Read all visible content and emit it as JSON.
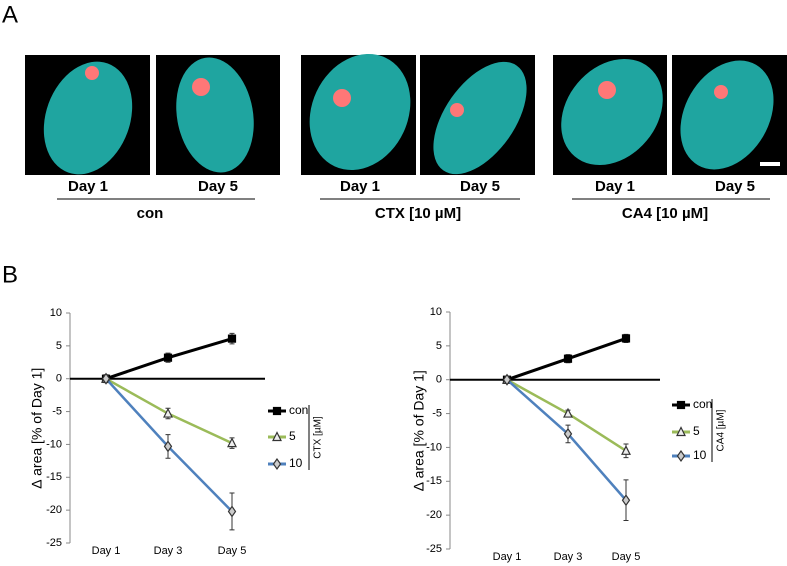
{
  "panel_a": {
    "label": "A",
    "groups": [
      {
        "name": "con",
        "days": [
          "Day 1",
          "Day 5"
        ]
      },
      {
        "name": "CTX [10 µM]",
        "days": [
          "Day 1",
          "Day 5"
        ]
      },
      {
        "name": "CA4 [10 µM]",
        "days": [
          "Day 1",
          "Day 5"
        ]
      }
    ]
  },
  "panel_b": {
    "label": "B"
  },
  "chart_data": [
    {
      "type": "line",
      "y_label": "∆ area [% of  Day 1]",
      "categories": [
        "Day 1",
        "Day 3",
        "Day 5"
      ],
      "ylim": [
        -25,
        10
      ],
      "yticks": [
        -25,
        -20,
        -15,
        -10,
        -5,
        0,
        5,
        10
      ],
      "legend_title": "CTX [µM]",
      "series": [
        {
          "name": "con",
          "color": "#000000",
          "marker": "square",
          "values": [
            0,
            3.2,
            6.1
          ],
          "errors": [
            0.6,
            0.7,
            0.8
          ]
        },
        {
          "name": "5",
          "color": "#9bbb59",
          "marker": "triangle",
          "values": [
            0,
            -5.3,
            -9.8
          ],
          "errors": [
            0.4,
            0.8,
            0.8
          ]
        },
        {
          "name": "10",
          "color": "#4f81bd",
          "marker": "diamond",
          "values": [
            0,
            -10.3,
            -20.2
          ],
          "errors": [
            0.5,
            1.8,
            2.8
          ]
        }
      ]
    },
    {
      "type": "line",
      "y_label": "∆ area [% of Day 1]",
      "categories": [
        "Day 1",
        "Day 3",
        "Day 5"
      ],
      "ylim": [
        -25,
        10
      ],
      "yticks": [
        -25,
        -20,
        -15,
        -10,
        -5,
        0,
        5,
        10
      ],
      "legend_title": "CA4 [µM]",
      "series": [
        {
          "name": "con",
          "color": "#000000",
          "marker": "square",
          "values": [
            0,
            3.1,
            6.1
          ],
          "errors": [
            0.5,
            0.6,
            0.6
          ]
        },
        {
          "name": "5",
          "color": "#9bbb59",
          "marker": "triangle",
          "values": [
            0,
            -5,
            -10.5
          ],
          "errors": [
            0.4,
            0.5,
            1
          ]
        },
        {
          "name": "10",
          "color": "#4f81bd",
          "marker": "diamond",
          "values": [
            0,
            -8,
            -17.8
          ],
          "errors": [
            0.5,
            1.3,
            3
          ]
        }
      ]
    }
  ]
}
